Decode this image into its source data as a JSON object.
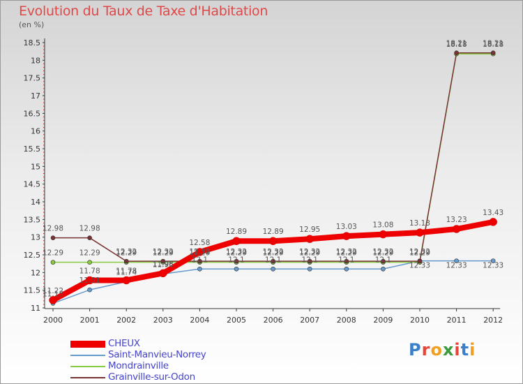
{
  "title": "Evolution du Taux de Taxe d'Habitation",
  "subtitle": "(en %)",
  "logo": "Proxiti",
  "logo_colors": [
    "#3a7fc8",
    "#e8453a",
    "#f0a020",
    "#3a9a3a",
    "#e8453a",
    "#3a7fc8",
    "#f0a020"
  ],
  "chart_data": {
    "type": "line",
    "x": [
      "2000",
      "2001",
      "2002",
      "2003",
      "2004",
      "2005",
      "2006",
      "2007",
      "2008",
      "2009",
      "2010",
      "2011",
      "2012"
    ],
    "ylim": [
      11,
      18.5
    ],
    "yticks": [
      "11",
      "11.5",
      "12",
      "12.5",
      "13",
      "13.5",
      "14",
      "14.5",
      "15",
      "15.5",
      "16",
      "16.5",
      "17",
      "17.5",
      "18",
      "18.5"
    ],
    "grid": false,
    "legend_position": "bottom-left",
    "series": [
      {
        "name": "CHEUX",
        "color": "#ee0000",
        "values": [
          11.22,
          11.78,
          11.78,
          11.98,
          12.58,
          12.89,
          12.89,
          12.95,
          13.03,
          13.08,
          13.13,
          13.23,
          13.43
        ]
      },
      {
        "name": "Saint-Manvieu-Norrey",
        "color": "#6699cc",
        "values": [
          11.13,
          11.51,
          11.74,
          11.96,
          12.1,
          12.1,
          12.1,
          12.1,
          12.1,
          12.1,
          12.33,
          12.33,
          12.33
        ]
      },
      {
        "name": "Mondrainville",
        "color": "#88cc44",
        "values": [
          12.29,
          12.29,
          12.29,
          12.29,
          12.29,
          12.29,
          12.29,
          12.29,
          12.29,
          12.29,
          12.29,
          18.18,
          18.18
        ]
      },
      {
        "name": "Grainville-sur-Odon",
        "color": "#773333",
        "values": [
          12.98,
          12.98,
          12.32,
          12.32,
          12.32,
          12.32,
          12.32,
          12.32,
          12.32,
          12.32,
          12.32,
          18.21,
          18.21
        ]
      }
    ]
  }
}
